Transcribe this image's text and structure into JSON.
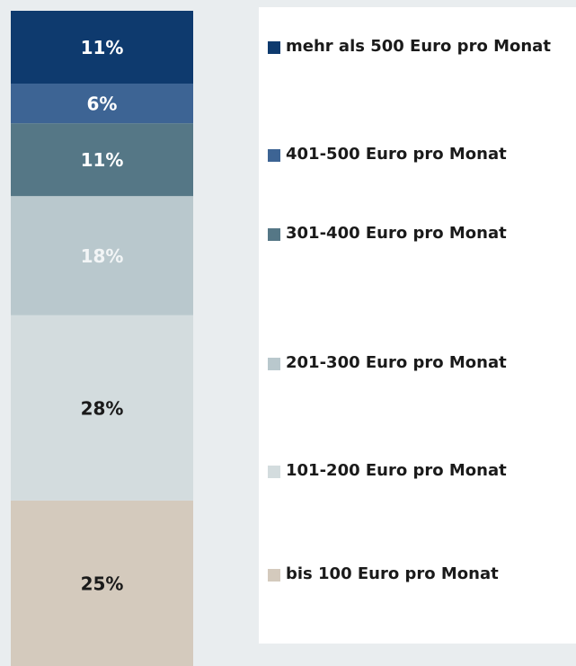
{
  "chart_data": {
    "type": "bar",
    "stacked": true,
    "series": [
      {
        "name": "bis 100 Euro pro Monat",
        "color": "#d4cabd",
        "label_color": "#1a1a1a",
        "values": [
          25
        ],
        "value_labels": [
          "25%"
        ]
      },
      {
        "name": "101-200 Euro pro Monat",
        "color": "#d3dcde",
        "label_color": "#1a1a1a",
        "values": [
          28
        ],
        "value_labels": [
          "28%"
        ]
      },
      {
        "name": "201-300 Euro pro Monat",
        "color": "#b9c8cd",
        "label_color": "#f2f5f6",
        "values": [
          18
        ],
        "value_labels": [
          "18%"
        ]
      },
      {
        "name": "301-400 Euro pro Monat",
        "color": "#557786",
        "label_color": "#ffffff",
        "values": [
          11
        ],
        "value_labels": [
          "11%"
        ]
      },
      {
        "name": "401-500 Euro pro Monat",
        "color": "#3d6494",
        "label_color": "#ffffff",
        "values": [
          6
        ],
        "value_labels": [
          "6%"
        ]
      },
      {
        "name": "mehr als 500 Euro pro Monat",
        "color": "#0e3a6e",
        "label_color": "#ffffff",
        "values": [
          11
        ],
        "value_labels": [
          "11%"
        ]
      }
    ]
  }
}
